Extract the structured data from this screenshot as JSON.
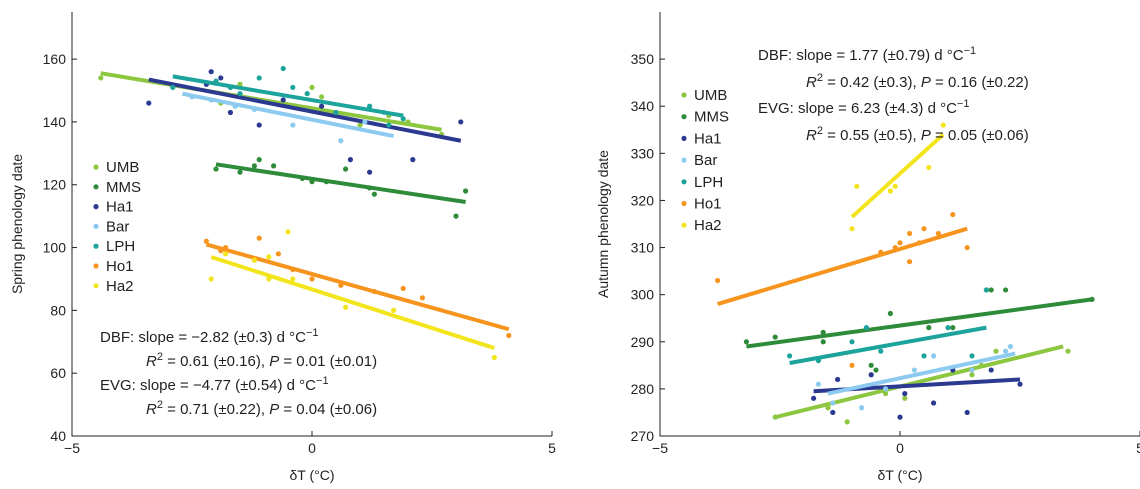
{
  "chart_data": [
    {
      "type": "scatter",
      "xlabel": "δT (°C)",
      "ylabel": "Spring phenology date",
      "xlim": [
        -5,
        5
      ],
      "ylim": [
        40,
        175
      ],
      "xticks": [
        -5,
        0,
        5
      ],
      "yticks": [
        40,
        60,
        80,
        100,
        120,
        140,
        160
      ],
      "legend_position": "left-middle",
      "annotations": [
        {
          "lead": "DBF: slope = −2.82 (±0.3) d °C",
          "sup": "−1"
        },
        {
          "r2": "R",
          "r2sup": "2",
          "r2val": " = 0.61 (±0.16), ",
          "p": "P",
          "pval": " = 0.01 (±0.01)"
        },
        {
          "lead": "EVG: slope = −4.77 (±0.54) d °C",
          "sup": "−1"
        },
        {
          "r2": "R",
          "r2sup": "2",
          "r2val": " = 0.71 (±0.22), ",
          "p": "P",
          "pval": " = 0.04 (±0.06)"
        }
      ],
      "series": [
        {
          "name": "UMB",
          "color": "#8dc63f",
          "line": [
            [
              -4.4,
              155.5
            ],
            [
              2.7,
              137.5
            ]
          ],
          "points": [
            [
              -4.4,
              154
            ],
            [
              -1.9,
              146
            ],
            [
              -1.5,
              152
            ],
            [
              0.0,
              151
            ],
            [
              0.2,
              148
            ],
            [
              1.0,
              139
            ],
            [
              1.6,
              142
            ],
            [
              2.0,
              140
            ],
            [
              2.7,
              136
            ]
          ]
        },
        {
          "name": "MMS",
          "color": "#2e8b3a",
          "line": [
            [
              -2.0,
              126.5
            ],
            [
              3.2,
              114.5
            ]
          ],
          "points": [
            [
              -2.0,
              125
            ],
            [
              -1.5,
              124
            ],
            [
              -1.2,
              126
            ],
            [
              -1.1,
              128
            ],
            [
              -0.8,
              126
            ],
            [
              -0.2,
              122
            ],
            [
              0.0,
              121
            ],
            [
              0.3,
              121
            ],
            [
              0.7,
              125
            ],
            [
              1.2,
              119
            ],
            [
              1.3,
              117
            ],
            [
              3.0,
              110
            ],
            [
              3.2,
              118
            ]
          ]
        },
        {
          "name": "Ha1",
          "color": "#2b3990",
          "line": [
            [
              -3.4,
              153.5
            ],
            [
              3.1,
              134
            ]
          ],
          "points": [
            [
              -3.4,
              146
            ],
            [
              -2.2,
              152
            ],
            [
              -2.1,
              156
            ],
            [
              -1.9,
              154
            ],
            [
              -1.7,
              143
            ],
            [
              -1.1,
              139
            ],
            [
              -0.6,
              147
            ],
            [
              0.2,
              145
            ],
            [
              0.8,
              128
            ],
            [
              1.2,
              124
            ],
            [
              2.1,
              128
            ],
            [
              3.1,
              140
            ]
          ]
        },
        {
          "name": "Bar",
          "color": "#8ccbef",
          "line": [
            [
              -2.7,
              149
            ],
            [
              1.7,
              135.5
            ]
          ],
          "points": [
            [
              -2.5,
              148
            ],
            [
              -2.1,
              147
            ],
            [
              -1.6,
              145
            ],
            [
              -1.2,
              144
            ],
            [
              -0.4,
              139
            ],
            [
              0.6,
              134
            ],
            [
              1.1,
              140
            ],
            [
              1.5,
              143
            ]
          ]
        },
        {
          "name": "LPH",
          "color": "#1ba39c",
          "line": [
            [
              -2.9,
              154.5
            ],
            [
              1.9,
              142
            ]
          ],
          "points": [
            [
              -2.9,
              151
            ],
            [
              -2.0,
              153
            ],
            [
              -1.7,
              151
            ],
            [
              -1.5,
              149
            ],
            [
              -1.1,
              154
            ],
            [
              -0.6,
              157
            ],
            [
              -0.4,
              151
            ],
            [
              -0.1,
              149
            ],
            [
              0.5,
              143
            ],
            [
              1.2,
              145
            ],
            [
              1.6,
              139
            ],
            [
              1.9,
              141
            ]
          ]
        },
        {
          "name": "Ho1",
          "color": "#f7941d",
          "line": [
            [
              -2.2,
              101
            ],
            [
              4.1,
              74
            ]
          ],
          "points": [
            [
              -2.2,
              102
            ],
            [
              -1.9,
              99
            ],
            [
              -1.8,
              100
            ],
            [
              -1.2,
              96
            ],
            [
              -1.1,
              103
            ],
            [
              -0.7,
              98
            ],
            [
              -0.4,
              93
            ],
            [
              0.0,
              90
            ],
            [
              0.6,
              88
            ],
            [
              1.3,
              86
            ],
            [
              1.9,
              87
            ],
            [
              2.3,
              84
            ],
            [
              4.1,
              72
            ]
          ]
        },
        {
          "name": "Ha2",
          "color": "#f2e51e",
          "line": [
            [
              -2.1,
              97
            ],
            [
              3.8,
              68
            ]
          ],
          "points": [
            [
              -2.1,
              90
            ],
            [
              -1.8,
              98
            ],
            [
              -1.2,
              96
            ],
            [
              -0.9,
              97
            ],
            [
              -0.9,
              90
            ],
            [
              -0.5,
              105
            ],
            [
              -0.4,
              90
            ],
            [
              0.7,
              81
            ],
            [
              1.7,
              80
            ],
            [
              3.8,
              65
            ]
          ]
        }
      ]
    },
    {
      "type": "scatter",
      "xlabel": "δT (°C)",
      "ylabel": "Autumn phenology date",
      "xlim": [
        -5,
        5
      ],
      "ylim": [
        270,
        360
      ],
      "xticks": [
        -5,
        0,
        5
      ],
      "yticks": [
        270,
        280,
        290,
        300,
        310,
        320,
        330,
        340,
        350
      ],
      "legend_position": "left-top",
      "annotations": [
        {
          "lead": "DBF: slope = 1.77 (±0.79) d °C",
          "sup": "−1"
        },
        {
          "r2": "R",
          "r2sup": "2",
          "r2val": " = 0.42 (±0.3), ",
          "p": "P",
          "pval": " = 0.16 (±0.22)"
        },
        {
          "lead": "EVG: slope = 6.23 (±4.3) d °C",
          "sup": "−1"
        },
        {
          "r2": "R",
          "r2sup": "2",
          "r2val": " = 0.55 (±0.5), ",
          "p": "P",
          "pval": " = 0.05 (±0.06)"
        }
      ],
      "series": [
        {
          "name": "UMB",
          "color": "#8dc63f",
          "line": [
            [
              -2.6,
              274
            ],
            [
              3.4,
              289
            ]
          ],
          "points": [
            [
              -2.6,
              274
            ],
            [
              -1.1,
              273
            ],
            [
              -1.5,
              276
            ],
            [
              -0.3,
              279
            ],
            [
              0.1,
              278
            ],
            [
              1.5,
              283
            ],
            [
              1.7,
              285
            ],
            [
              2.0,
              288
            ],
            [
              3.5,
              288
            ]
          ]
        },
        {
          "name": "MMS",
          "color": "#2e8b3a",
          "line": [
            [
              -3.2,
              289
            ],
            [
              4.0,
              299
            ]
          ],
          "points": [
            [
              -3.2,
              290
            ],
            [
              -2.6,
              291
            ],
            [
              -1.6,
              292
            ],
            [
              -1.6,
              290
            ],
            [
              -0.6,
              285
            ],
            [
              -0.5,
              284
            ],
            [
              -0.2,
              296
            ],
            [
              0.6,
              293
            ],
            [
              1.1,
              293
            ],
            [
              1.8,
              301
            ],
            [
              1.9,
              301
            ],
            [
              2.2,
              301
            ],
            [
              4.0,
              299
            ]
          ]
        },
        {
          "name": "Ha1",
          "color": "#2b3990",
          "line": [
            [
              -1.8,
              279.5
            ],
            [
              2.5,
              282
            ]
          ],
          "points": [
            [
              -1.8,
              278
            ],
            [
              -1.4,
              275
            ],
            [
              -1.3,
              282
            ],
            [
              -0.6,
              283
            ],
            [
              0.0,
              274
            ],
            [
              0.1,
              279
            ],
            [
              0.7,
              277
            ],
            [
              1.1,
              284
            ],
            [
              1.4,
              275
            ],
            [
              2.5,
              281
            ],
            [
              1.9,
              284
            ]
          ]
        },
        {
          "name": "Bar",
          "color": "#8ccbef",
          "line": [
            [
              -1.5,
              279
            ],
            [
              2.4,
              287.5
            ]
          ],
          "points": [
            [
              -1.7,
              281
            ],
            [
              -1.4,
              277
            ],
            [
              -0.8,
              276
            ],
            [
              -0.3,
              280
            ],
            [
              0.3,
              284
            ],
            [
              0.7,
              287
            ],
            [
              1.5,
              284
            ],
            [
              2.2,
              288
            ],
            [
              2.3,
              289
            ]
          ]
        },
        {
          "name": "LPH",
          "color": "#1ba39c",
          "line": [
            [
              -2.3,
              285.5
            ],
            [
              1.8,
              293
            ]
          ],
          "points": [
            [
              -2.3,
              287
            ],
            [
              -1.7,
              286
            ],
            [
              -1.0,
              290
            ],
            [
              -0.7,
              293
            ],
            [
              -0.4,
              288
            ],
            [
              0.5,
              287
            ],
            [
              1.0,
              293
            ],
            [
              1.5,
              287
            ],
            [
              1.8,
              301
            ]
          ]
        },
        {
          "name": "Ho1",
          "color": "#f7941d",
          "line": [
            [
              -3.8,
              298
            ],
            [
              1.4,
              314
            ]
          ],
          "points": [
            [
              -3.8,
              303
            ],
            [
              -1.0,
              285
            ],
            [
              -0.4,
              309
            ],
            [
              0.0,
              311
            ],
            [
              0.2,
              307
            ],
            [
              0.2,
              313
            ],
            [
              0.4,
              311
            ],
            [
              0.5,
              314
            ],
            [
              0.8,
              313
            ],
            [
              1.1,
              317
            ],
            [
              1.4,
              310
            ],
            [
              -0.1,
              310
            ]
          ]
        },
        {
          "name": "Ha2",
          "color": "#f2e51e",
          "line": [
            [
              -1.0,
              316.5
            ],
            [
              0.9,
              334
            ]
          ],
          "points": [
            [
              -1.0,
              314
            ],
            [
              -0.9,
              323
            ],
            [
              -0.2,
              322
            ],
            [
              -0.1,
              323
            ],
            [
              0.6,
              327
            ],
            [
              0.9,
              336
            ]
          ]
        }
      ]
    }
  ]
}
